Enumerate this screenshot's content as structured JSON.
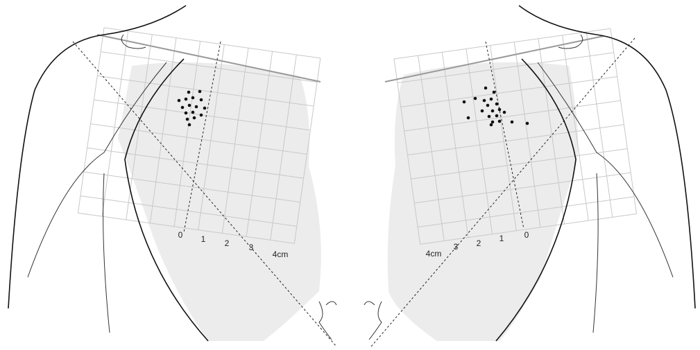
{
  "left_panel": {
    "scale_labels": [
      "0",
      "1",
      "2",
      "3",
      "4cm"
    ]
  },
  "right_panel": {
    "scale_labels": [
      "4cm",
      "3",
      "2",
      "1",
      "0"
    ]
  }
}
